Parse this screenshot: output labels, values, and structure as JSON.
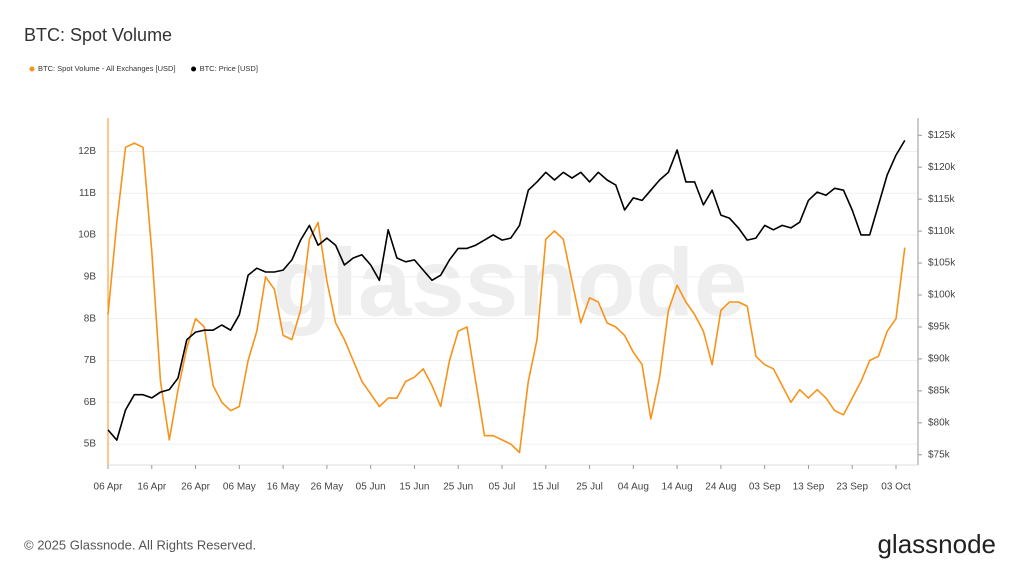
{
  "chart_data": {
    "type": "line",
    "title": "BTC: Spot Volume",
    "categories": [
      "06 Apr",
      null,
      null,
      null,
      null,
      "16 Apr",
      null,
      null,
      null,
      null,
      "26 Apr",
      null,
      null,
      null,
      null,
      "06 May",
      null,
      null,
      null,
      null,
      "16 May",
      null,
      null,
      null,
      null,
      "26 May",
      null,
      null,
      null,
      null,
      "05 Jun",
      null,
      null,
      null,
      null,
      "15 Jun",
      null,
      null,
      null,
      null,
      "25 Jun",
      null,
      null,
      null,
      null,
      "05 Jul",
      null,
      null,
      null,
      null,
      "15 Jul",
      null,
      null,
      null,
      null,
      "25 Jul",
      null,
      null,
      null,
      null,
      "04 Aug",
      null,
      null,
      null,
      null,
      "14 Aug",
      null,
      null,
      null,
      null,
      "24 Aug",
      null,
      null,
      null,
      null,
      "03 Sep",
      null,
      null,
      null,
      null,
      "13 Sep",
      null,
      null,
      null,
      null,
      "23 Sep",
      null,
      null,
      null,
      null,
      "03 Oct",
      null
    ],
    "series": [
      {
        "name": "BTC: Spot Volume - All Exchanges [USD]",
        "color": "#f7931a",
        "axis": "y",
        "values": [
          8.1,
          10.3,
          12.1,
          12.2,
          12.1,
          9.6,
          6.5,
          5.1,
          6.3,
          7.3,
          8.0,
          7.8,
          6.4,
          6.0,
          5.8,
          5.9,
          7.0,
          7.7,
          9.0,
          8.7,
          7.6,
          7.5,
          8.2,
          9.9,
          10.3,
          8.9,
          7.9,
          7.5,
          7.0,
          6.5,
          6.2,
          5.9,
          6.1,
          6.1,
          6.5,
          6.6,
          6.8,
          6.4,
          5.9,
          7.0,
          7.7,
          7.8,
          6.5,
          5.2,
          5.2,
          5.1,
          5.0,
          4.8,
          6.5,
          7.5,
          9.9,
          10.1,
          9.9,
          8.9,
          7.9,
          8.5,
          8.4,
          7.9,
          7.8,
          7.6,
          7.2,
          6.9,
          5.6,
          6.6,
          8.2,
          8.8,
          8.4,
          8.1,
          7.7,
          6.9,
          8.2,
          8.4,
          8.4,
          8.3,
          7.1,
          6.9,
          6.8,
          6.4,
          6.0,
          6.3,
          6.1,
          6.3,
          6.1,
          5.8,
          5.7,
          6.1,
          6.5,
          7.0,
          7.1,
          7.7,
          8.0,
          9.7
        ]
      },
      {
        "name": "BTC: Price [USD]",
        "color": "#000000",
        "axis": "y2",
        "values": [
          78.9,
          77.3,
          82.0,
          84.4,
          84.4,
          83.9,
          84.8,
          85.2,
          87.0,
          93.0,
          94.2,
          94.5,
          94.5,
          95.3,
          94.5,
          96.9,
          103.1,
          104.2,
          103.6,
          103.6,
          103.9,
          105.5,
          108.6,
          110.9,
          107.8,
          108.9,
          107.8,
          104.7,
          105.8,
          106.3,
          104.7,
          102.3,
          110.2,
          105.8,
          105.2,
          105.5,
          103.9,
          102.3,
          103.1,
          105.5,
          107.3,
          107.3,
          107.8,
          108.6,
          109.4,
          108.6,
          108.9,
          110.9,
          116.4,
          117.7,
          119.2,
          118.0,
          119.2,
          118.3,
          119.2,
          117.7,
          119.2,
          118.0,
          117.2,
          113.3,
          115.2,
          114.8,
          116.4,
          118.0,
          119.2,
          122.7,
          117.7,
          117.7,
          114.1,
          116.4,
          112.5,
          112.0,
          110.5,
          108.6,
          108.9,
          110.9,
          110.2,
          110.9,
          110.5,
          111.4,
          114.8,
          116.1,
          115.6,
          116.7,
          116.4,
          113.3,
          109.4,
          109.4,
          114.1,
          118.8,
          121.9,
          124.2
        ]
      }
    ],
    "ylim": [
      4.5,
      12.8
    ],
    "yticks": [
      {
        "value": 5,
        "label": "5B"
      },
      {
        "value": 6,
        "label": "6B"
      },
      {
        "value": 7,
        "label": "7B"
      },
      {
        "value": 8,
        "label": "8B"
      },
      {
        "value": 9,
        "label": "9B"
      },
      {
        "value": 10,
        "label": "10B"
      },
      {
        "value": 11,
        "label": "11B"
      },
      {
        "value": 12,
        "label": "12B"
      }
    ],
    "y2lim": [
      73.4,
      127.7
    ],
    "y2ticks": [
      {
        "value": 75,
        "label": "$75k"
      },
      {
        "value": 80,
        "label": "$80k"
      },
      {
        "value": 85,
        "label": "$85k"
      },
      {
        "value": 90,
        "label": "$90k"
      },
      {
        "value": 95,
        "label": "$95k"
      },
      {
        "value": 100,
        "label": "$100k"
      },
      {
        "value": 105,
        "label": "$105k"
      },
      {
        "value": 110,
        "label": "$110k"
      },
      {
        "value": 115,
        "label": "$115k"
      },
      {
        "value": 120,
        "label": "$120k"
      },
      {
        "value": 125,
        "label": "$125k"
      }
    ],
    "grid": true,
    "legend": "top-left"
  },
  "watermark": "glassnode",
  "footer": {
    "copyright": "© 2025 Glassnode. All Rights Reserved.",
    "logo": "glassnode"
  }
}
